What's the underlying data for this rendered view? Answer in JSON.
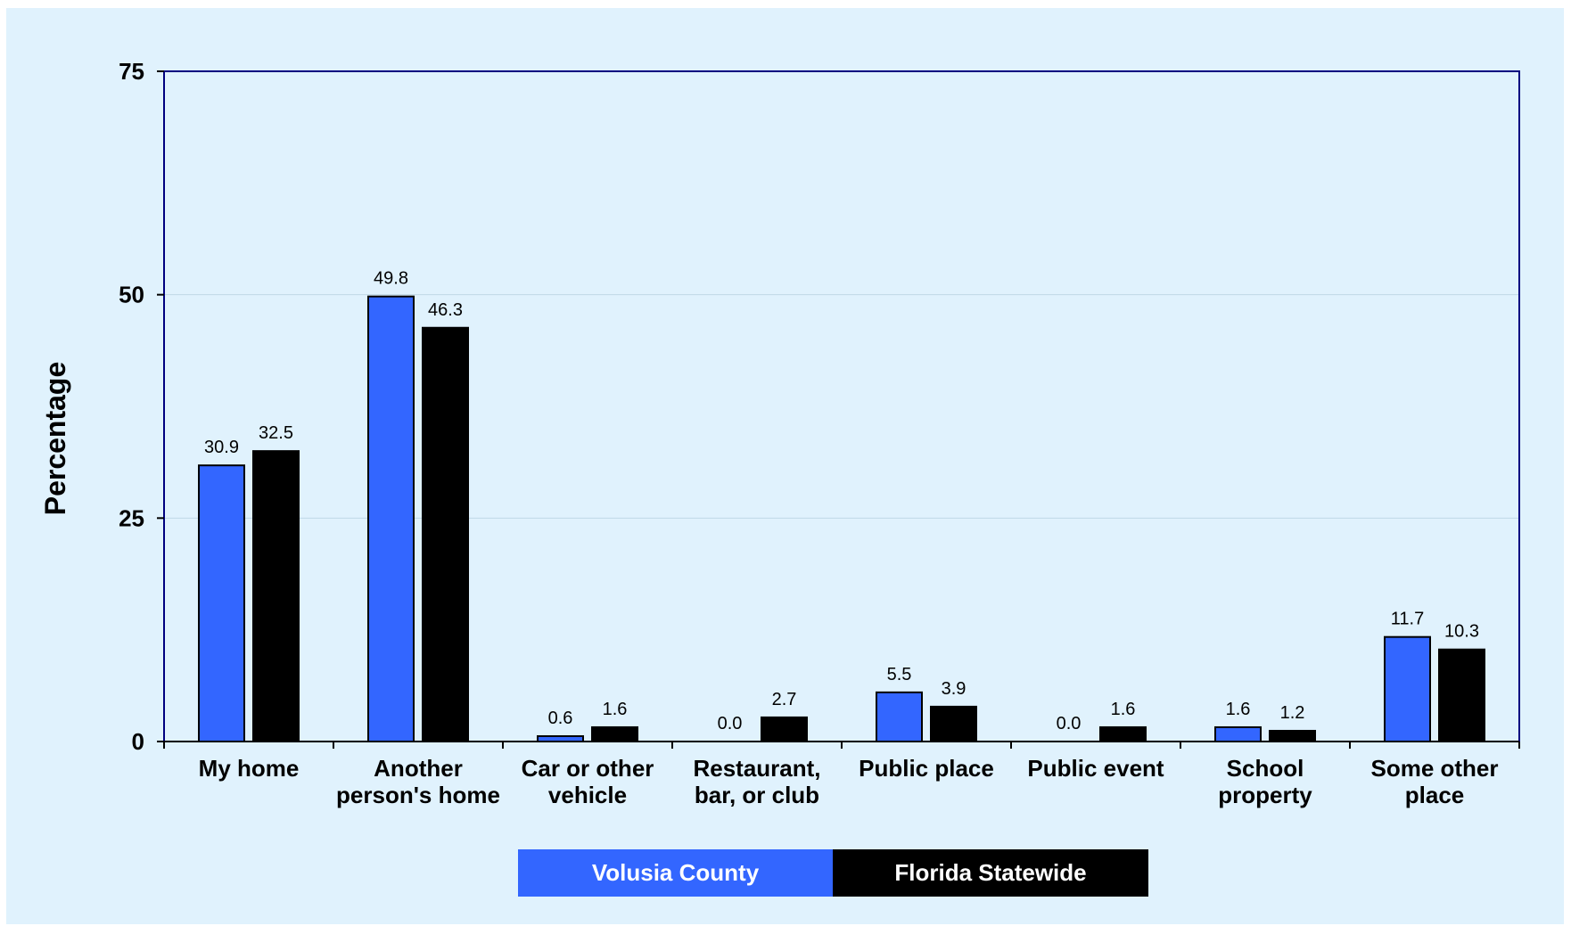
{
  "chart_data": {
    "type": "bar",
    "title": "",
    "ylabel": "Percentage",
    "xlabel": "",
    "ylim": [
      0,
      75
    ],
    "yticks": [
      0,
      25,
      50,
      75
    ],
    "categories": [
      [
        "My home"
      ],
      [
        "Another",
        "person's home"
      ],
      [
        "Car or other",
        "vehicle"
      ],
      [
        "Restaurant,",
        "bar, or club"
      ],
      [
        "Public place"
      ],
      [
        "Public event"
      ],
      [
        "School",
        "property"
      ],
      [
        "Some other",
        "place"
      ]
    ],
    "series": [
      {
        "name": "Volusia County",
        "color": "#3366ff",
        "values": [
          30.9,
          49.8,
          0.6,
          0.0,
          5.5,
          0.0,
          1.6,
          11.7
        ],
        "labels": [
          "30.9",
          "49.8",
          "0.6",
          "0.0",
          "5.5",
          "0.0",
          "1.6",
          "11.7"
        ]
      },
      {
        "name": "Florida Statewide",
        "color": "#000000",
        "values": [
          32.5,
          46.3,
          1.6,
          2.7,
          3.9,
          1.6,
          1.2,
          10.3
        ],
        "labels": [
          "32.5",
          "46.3",
          "1.6",
          "2.7",
          "3.9",
          "1.6",
          "1.2",
          "10.3"
        ]
      }
    ],
    "grid": true,
    "legend": "bottom"
  },
  "legend": {
    "items": [
      {
        "label": "Volusia County",
        "color": "#3366ff"
      },
      {
        "label": "Florida Statewide",
        "color": "#000000"
      }
    ]
  }
}
